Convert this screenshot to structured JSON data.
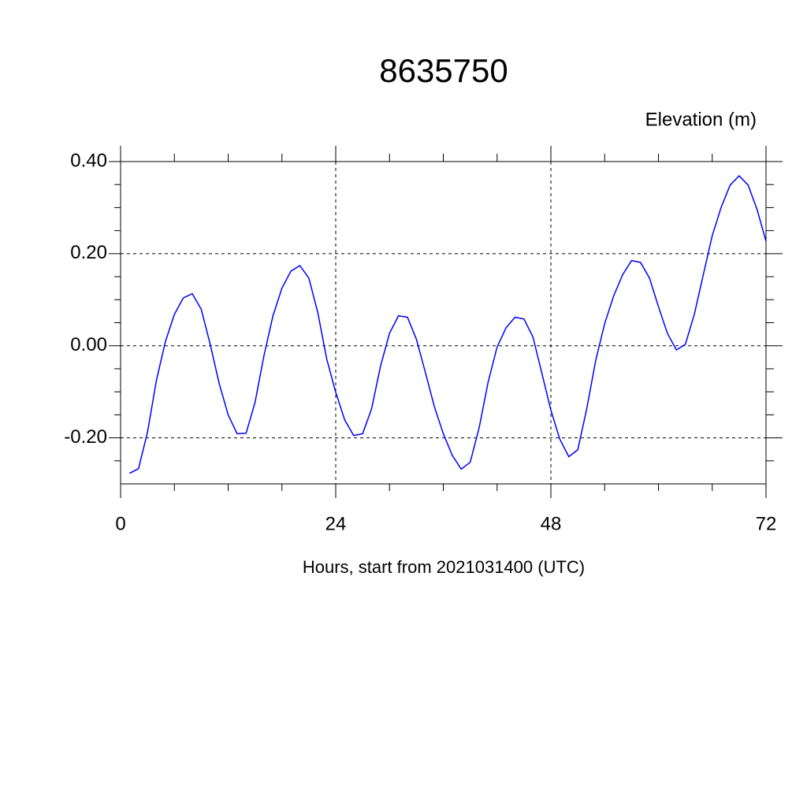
{
  "chart_data": {
    "type": "line",
    "title": "8635750",
    "ylabel": "Elevation (m)",
    "xlabel": "Hours, start from 2021031400 (UTC)",
    "x": [
      1,
      2,
      3,
      4,
      5,
      6,
      7,
      8,
      9,
      10,
      11,
      12,
      13,
      14,
      15,
      16,
      17,
      18,
      19,
      20,
      21,
      22,
      23,
      24,
      25,
      26,
      27,
      28,
      29,
      30,
      31,
      32,
      33,
      34,
      35,
      36,
      37,
      38,
      39,
      40,
      41,
      42,
      43,
      44,
      45,
      46,
      47,
      48,
      49,
      50,
      51,
      52,
      53,
      54,
      55,
      56,
      57,
      58,
      59,
      60,
      61,
      62,
      63,
      64,
      65,
      66,
      67,
      68,
      69,
      70,
      71,
      72
    ],
    "series": [
      {
        "color": "#0000ff",
        "values": [
          -0.277,
          -0.267,
          -0.188,
          -0.075,
          0.009,
          0.068,
          0.104,
          0.113,
          0.079,
          0.003,
          -0.082,
          -0.15,
          -0.191,
          -0.19,
          -0.123,
          -0.021,
          0.065,
          0.125,
          0.162,
          0.174,
          0.147,
          0.072,
          -0.029,
          -0.101,
          -0.161,
          -0.195,
          -0.191,
          -0.137,
          -0.044,
          0.027,
          0.065,
          0.062,
          0.014,
          -0.058,
          -0.132,
          -0.191,
          -0.238,
          -0.268,
          -0.253,
          -0.178,
          -0.079,
          -0.003,
          0.039,
          0.062,
          0.058,
          0.019,
          -0.06,
          -0.14,
          -0.203,
          -0.241,
          -0.226,
          -0.137,
          -0.032,
          0.048,
          0.108,
          0.154,
          0.185,
          0.181,
          0.147,
          0.085,
          0.027,
          -0.009,
          0.003,
          0.068,
          0.154,
          0.239,
          0.301,
          0.349,
          0.369,
          0.349,
          0.296,
          0.227
        ]
      }
    ],
    "xlim": [
      0,
      72
    ],
    "ylim": [
      -0.3,
      0.4
    ],
    "xticks": [
      0,
      24,
      48,
      72
    ],
    "yticks": [
      {
        "value": -0.2,
        "label": "-0.20"
      },
      {
        "value": 0,
        "label": "0.00"
      },
      {
        "value": 0.2,
        "label": "0.20"
      },
      {
        "value": 0.4,
        "label": "0.40"
      }
    ],
    "xminorticks": [
      6,
      12,
      18,
      30,
      36,
      42,
      54,
      60,
      66
    ],
    "yminorticks": [
      -0.25,
      -0.15,
      -0.1,
      -0.05,
      0.05,
      0.1,
      0.15,
      0.25,
      0.3,
      0.35
    ],
    "grid": true
  }
}
